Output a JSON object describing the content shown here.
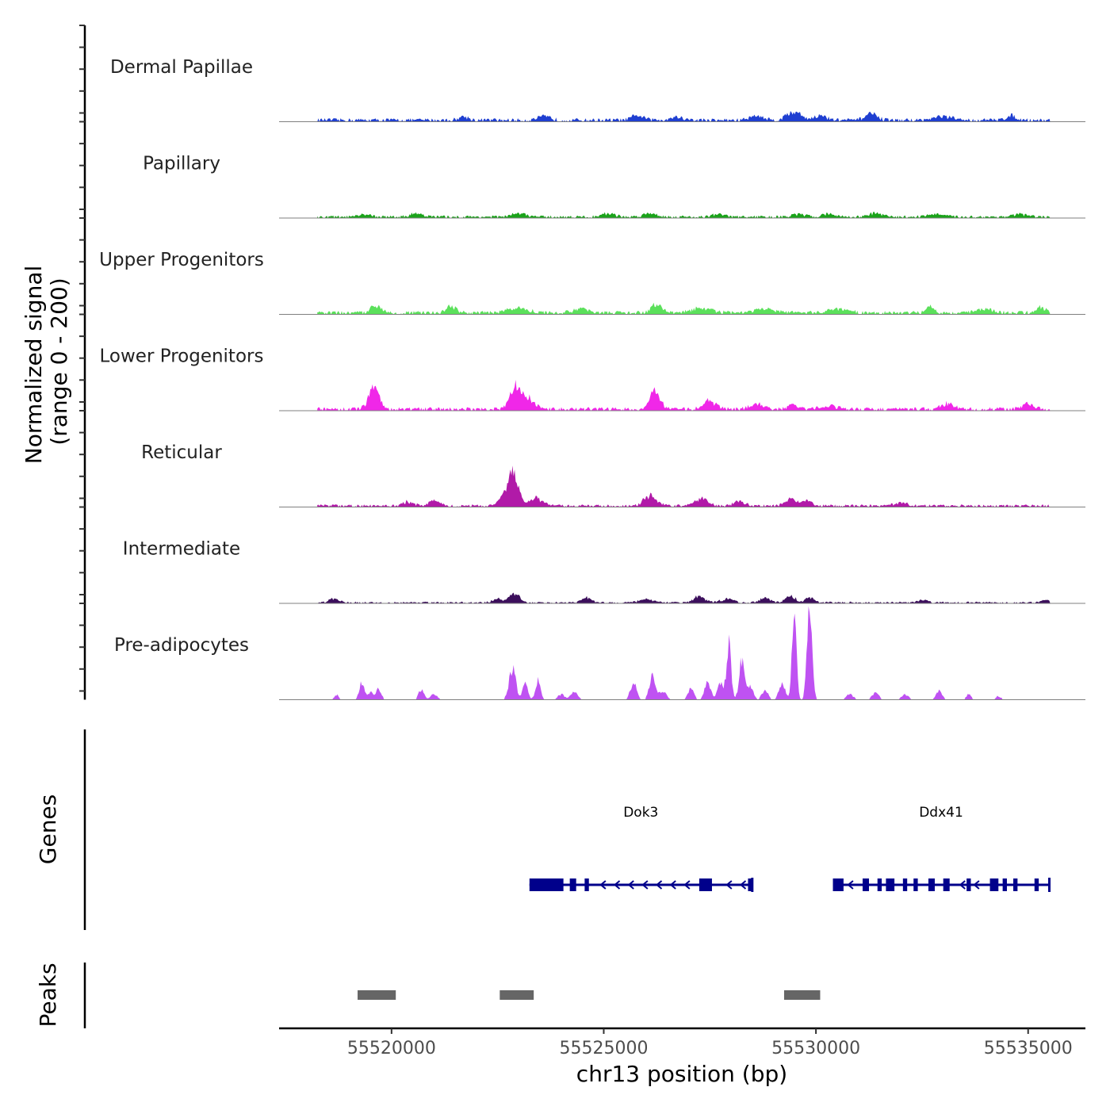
{
  "chart_data": {
    "type": "area",
    "title": "",
    "ylabel": "Normalized signal",
    "ylabel_range": "(range 0 - 200)",
    "ylim": [
      0,
      200
    ],
    "xlabel": "chr13 position (bp)",
    "xlim": [
      55517350,
      55536350
    ],
    "x_ticks": [
      55520000,
      55525000,
      55530000,
      55535000
    ],
    "x_tick_labels": [
      "55520000",
      "55525000",
      "55530000",
      "55535000"
    ],
    "data_range": [
      55518250,
      55535520
    ],
    "series": [
      {
        "name": "Dermal Papillae",
        "color": "#1f3fd1",
        "base": 4,
        "peaks": [
          [
            55521700,
            4,
            120
          ],
          [
            55523600,
            4,
            150
          ],
          [
            55525800,
            5,
            140
          ],
          [
            55526700,
            4,
            150
          ],
          [
            55528600,
            5,
            160
          ],
          [
            55529400,
            7,
            140
          ],
          [
            55529600,
            5,
            120
          ],
          [
            55530100,
            5,
            160
          ],
          [
            55531300,
            7,
            140
          ],
          [
            55533000,
            4,
            200
          ],
          [
            55534600,
            5,
            120
          ]
        ]
      },
      {
        "name": "Papillary",
        "color": "#1aa31a",
        "base": 3,
        "peaks": [
          [
            55519400,
            3,
            120
          ],
          [
            55520600,
            4,
            150
          ],
          [
            55523000,
            4,
            160
          ],
          [
            55525100,
            4,
            150
          ],
          [
            55526100,
            4,
            160
          ],
          [
            55527700,
            3,
            150
          ],
          [
            55529600,
            3,
            150
          ],
          [
            55530300,
            4,
            140
          ],
          [
            55531400,
            4,
            160
          ],
          [
            55532800,
            3,
            200
          ],
          [
            55534800,
            3,
            150
          ]
        ]
      },
      {
        "name": "Upper Progenitors",
        "color": "#5be05b",
        "base": 4,
        "peaks": [
          [
            55519640,
            9,
            120
          ],
          [
            55521400,
            7,
            120
          ],
          [
            55523000,
            5,
            250
          ],
          [
            55524500,
            4,
            200
          ],
          [
            55526250,
            10,
            120
          ],
          [
            55527300,
            5,
            250
          ],
          [
            55528800,
            4,
            250
          ],
          [
            55530500,
            4,
            250
          ],
          [
            55532700,
            7,
            100
          ],
          [
            55534000,
            4,
            200
          ],
          [
            55535300,
            6,
            120
          ]
        ]
      },
      {
        "name": "Lower Progenitors",
        "color": "#f027e8",
        "base": 4,
        "peaks": [
          [
            55519580,
            24,
            120
          ],
          [
            55522900,
            25,
            120
          ],
          [
            55523200,
            12,
            160
          ],
          [
            55526200,
            21,
            120
          ],
          [
            55527500,
            9,
            150
          ],
          [
            55528600,
            6,
            150
          ],
          [
            55529450,
            6,
            100
          ],
          [
            55530300,
            4,
            200
          ],
          [
            55533100,
            6,
            150
          ],
          [
            55535000,
            6,
            150
          ]
        ]
      },
      {
        "name": "Reticular",
        "color": "#b11aa8",
        "base": 3,
        "peaks": [
          [
            55522880,
            38,
            110
          ],
          [
            55522650,
            12,
            120
          ],
          [
            55523400,
            9,
            150
          ],
          [
            55520400,
            5,
            120
          ],
          [
            55521000,
            6,
            120
          ],
          [
            55526100,
            12,
            150
          ],
          [
            55527300,
            8,
            150
          ],
          [
            55528200,
            6,
            120
          ],
          [
            55529400,
            9,
            120
          ],
          [
            55529800,
            6,
            120
          ],
          [
            55532000,
            4,
            150
          ]
        ]
      },
      {
        "name": "Intermediate",
        "color": "#3c0f5c",
        "base": 2,
        "peaks": [
          [
            55518650,
            5,
            120
          ],
          [
            55522900,
            11,
            110
          ],
          [
            55522500,
            4,
            120
          ],
          [
            55524600,
            6,
            100
          ],
          [
            55526000,
            4,
            150
          ],
          [
            55527250,
            7,
            130
          ],
          [
            55527900,
            4,
            150
          ],
          [
            55528800,
            5,
            120
          ],
          [
            55529400,
            8,
            110
          ],
          [
            55529850,
            6,
            100
          ],
          [
            55532500,
            3,
            120
          ],
          [
            55535400,
            3,
            80
          ]
        ]
      },
      {
        "name": "Pre-adipocytes",
        "color": "#bf52f2",
        "base": 0,
        "peaks": [
          [
            55518700,
            6,
            50
          ],
          [
            55519300,
            19,
            60
          ],
          [
            55519500,
            9,
            60
          ],
          [
            55519700,
            12,
            60
          ],
          [
            55520700,
            12,
            60
          ],
          [
            55521000,
            6,
            80
          ],
          [
            55522850,
            34,
            80
          ],
          [
            55523150,
            18,
            60
          ],
          [
            55523450,
            21,
            60
          ],
          [
            55524000,
            6,
            80
          ],
          [
            55524300,
            9,
            80
          ],
          [
            55525700,
            20,
            70
          ],
          [
            55526150,
            31,
            70
          ],
          [
            55526400,
            9,
            80
          ],
          [
            55527050,
            12,
            70
          ],
          [
            55527450,
            20,
            70
          ],
          [
            55527750,
            18,
            70
          ],
          [
            55527950,
            62,
            55
          ],
          [
            55528250,
            44,
            60
          ],
          [
            55528450,
            14,
            70
          ],
          [
            55528800,
            12,
            70
          ],
          [
            55529200,
            20,
            70
          ],
          [
            55529490,
            97,
            50
          ],
          [
            55529850,
            94,
            60
          ],
          [
            55530800,
            6,
            80
          ],
          [
            55531400,
            8,
            80
          ],
          [
            55532100,
            6,
            80
          ],
          [
            55532900,
            10,
            70
          ],
          [
            55533600,
            6,
            60
          ],
          [
            55534300,
            4,
            60
          ]
        ]
      }
    ],
    "genes": [
      {
        "name": "Dok3",
        "strand": "-",
        "start": 55523250,
        "end": 55528500,
        "exons": [
          [
            55523250,
            55524050
          ],
          [
            55524200,
            55524350
          ],
          [
            55524550,
            55524650
          ],
          [
            55527250,
            55527550
          ],
          [
            55528400,
            55528500
          ]
        ]
      },
      {
        "name": "Ddx41",
        "strand": "-",
        "start": 55530400,
        "end": 55535500,
        "exons": [
          [
            55530400,
            55530650
          ],
          [
            55531100,
            55531250
          ],
          [
            55531450,
            55531550
          ],
          [
            55531650,
            55531850
          ],
          [
            55532050,
            55532150
          ],
          [
            55532300,
            55532400
          ],
          [
            55532650,
            55532800
          ],
          [
            55533000,
            55533150
          ],
          [
            55533550,
            55533650
          ],
          [
            55534100,
            55534300
          ],
          [
            55534400,
            55534500
          ],
          [
            55534650,
            55534750
          ],
          [
            55535150,
            55535250
          ]
        ]
      }
    ],
    "peaks_track": [
      [
        55519200,
        55520100
      ],
      [
        55522550,
        55523350
      ],
      [
        55529250,
        55530100
      ]
    ],
    "panel_labels": {
      "genes": "Genes",
      "peaks": "Peaks"
    }
  }
}
